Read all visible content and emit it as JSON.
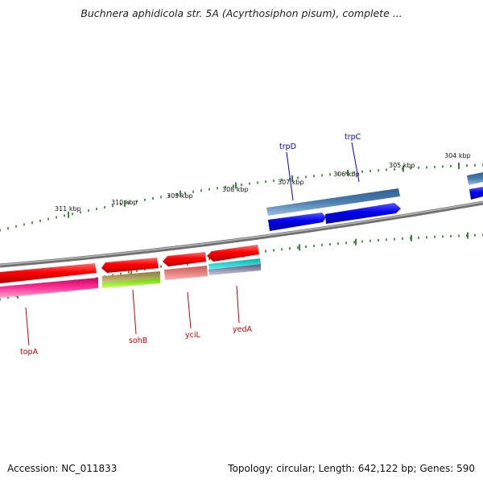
{
  "header": {
    "title": "Buchnera aphidicola str. 5A (Acyrthosiphon pisum), complete ..."
  },
  "footer": {
    "accession": "Accession: NC_011833",
    "summary": "Topology: circular; Length: 642,122 bp; Genes: 590"
  },
  "ruler": {
    "labels": [
      "311 kbp",
      "310 kbp",
      "309 kbp",
      "308 kbp",
      "307 kbp",
      "306 kbp",
      "305 kbp",
      "304 kbp"
    ]
  },
  "genes": {
    "forward": [
      {
        "name": "trpD",
        "color": "#0000cc"
      },
      {
        "name": "trpC",
        "color": "#0000cc"
      }
    ],
    "reverse": [
      {
        "name": "topA",
        "color": "#cc0000"
      },
      {
        "name": "sohB",
        "color": "#cc0000"
      },
      {
        "name": "yciL",
        "color": "#cc0000"
      },
      {
        "name": "yedA",
        "color": "#cc0000"
      }
    ]
  },
  "colors": {
    "backbone": "#808080",
    "tick": "#2a7a2a",
    "forward_cds": "#0000ee",
    "forward_gene": "#4a7eb0",
    "reverse_cds": "#ee0000"
  }
}
